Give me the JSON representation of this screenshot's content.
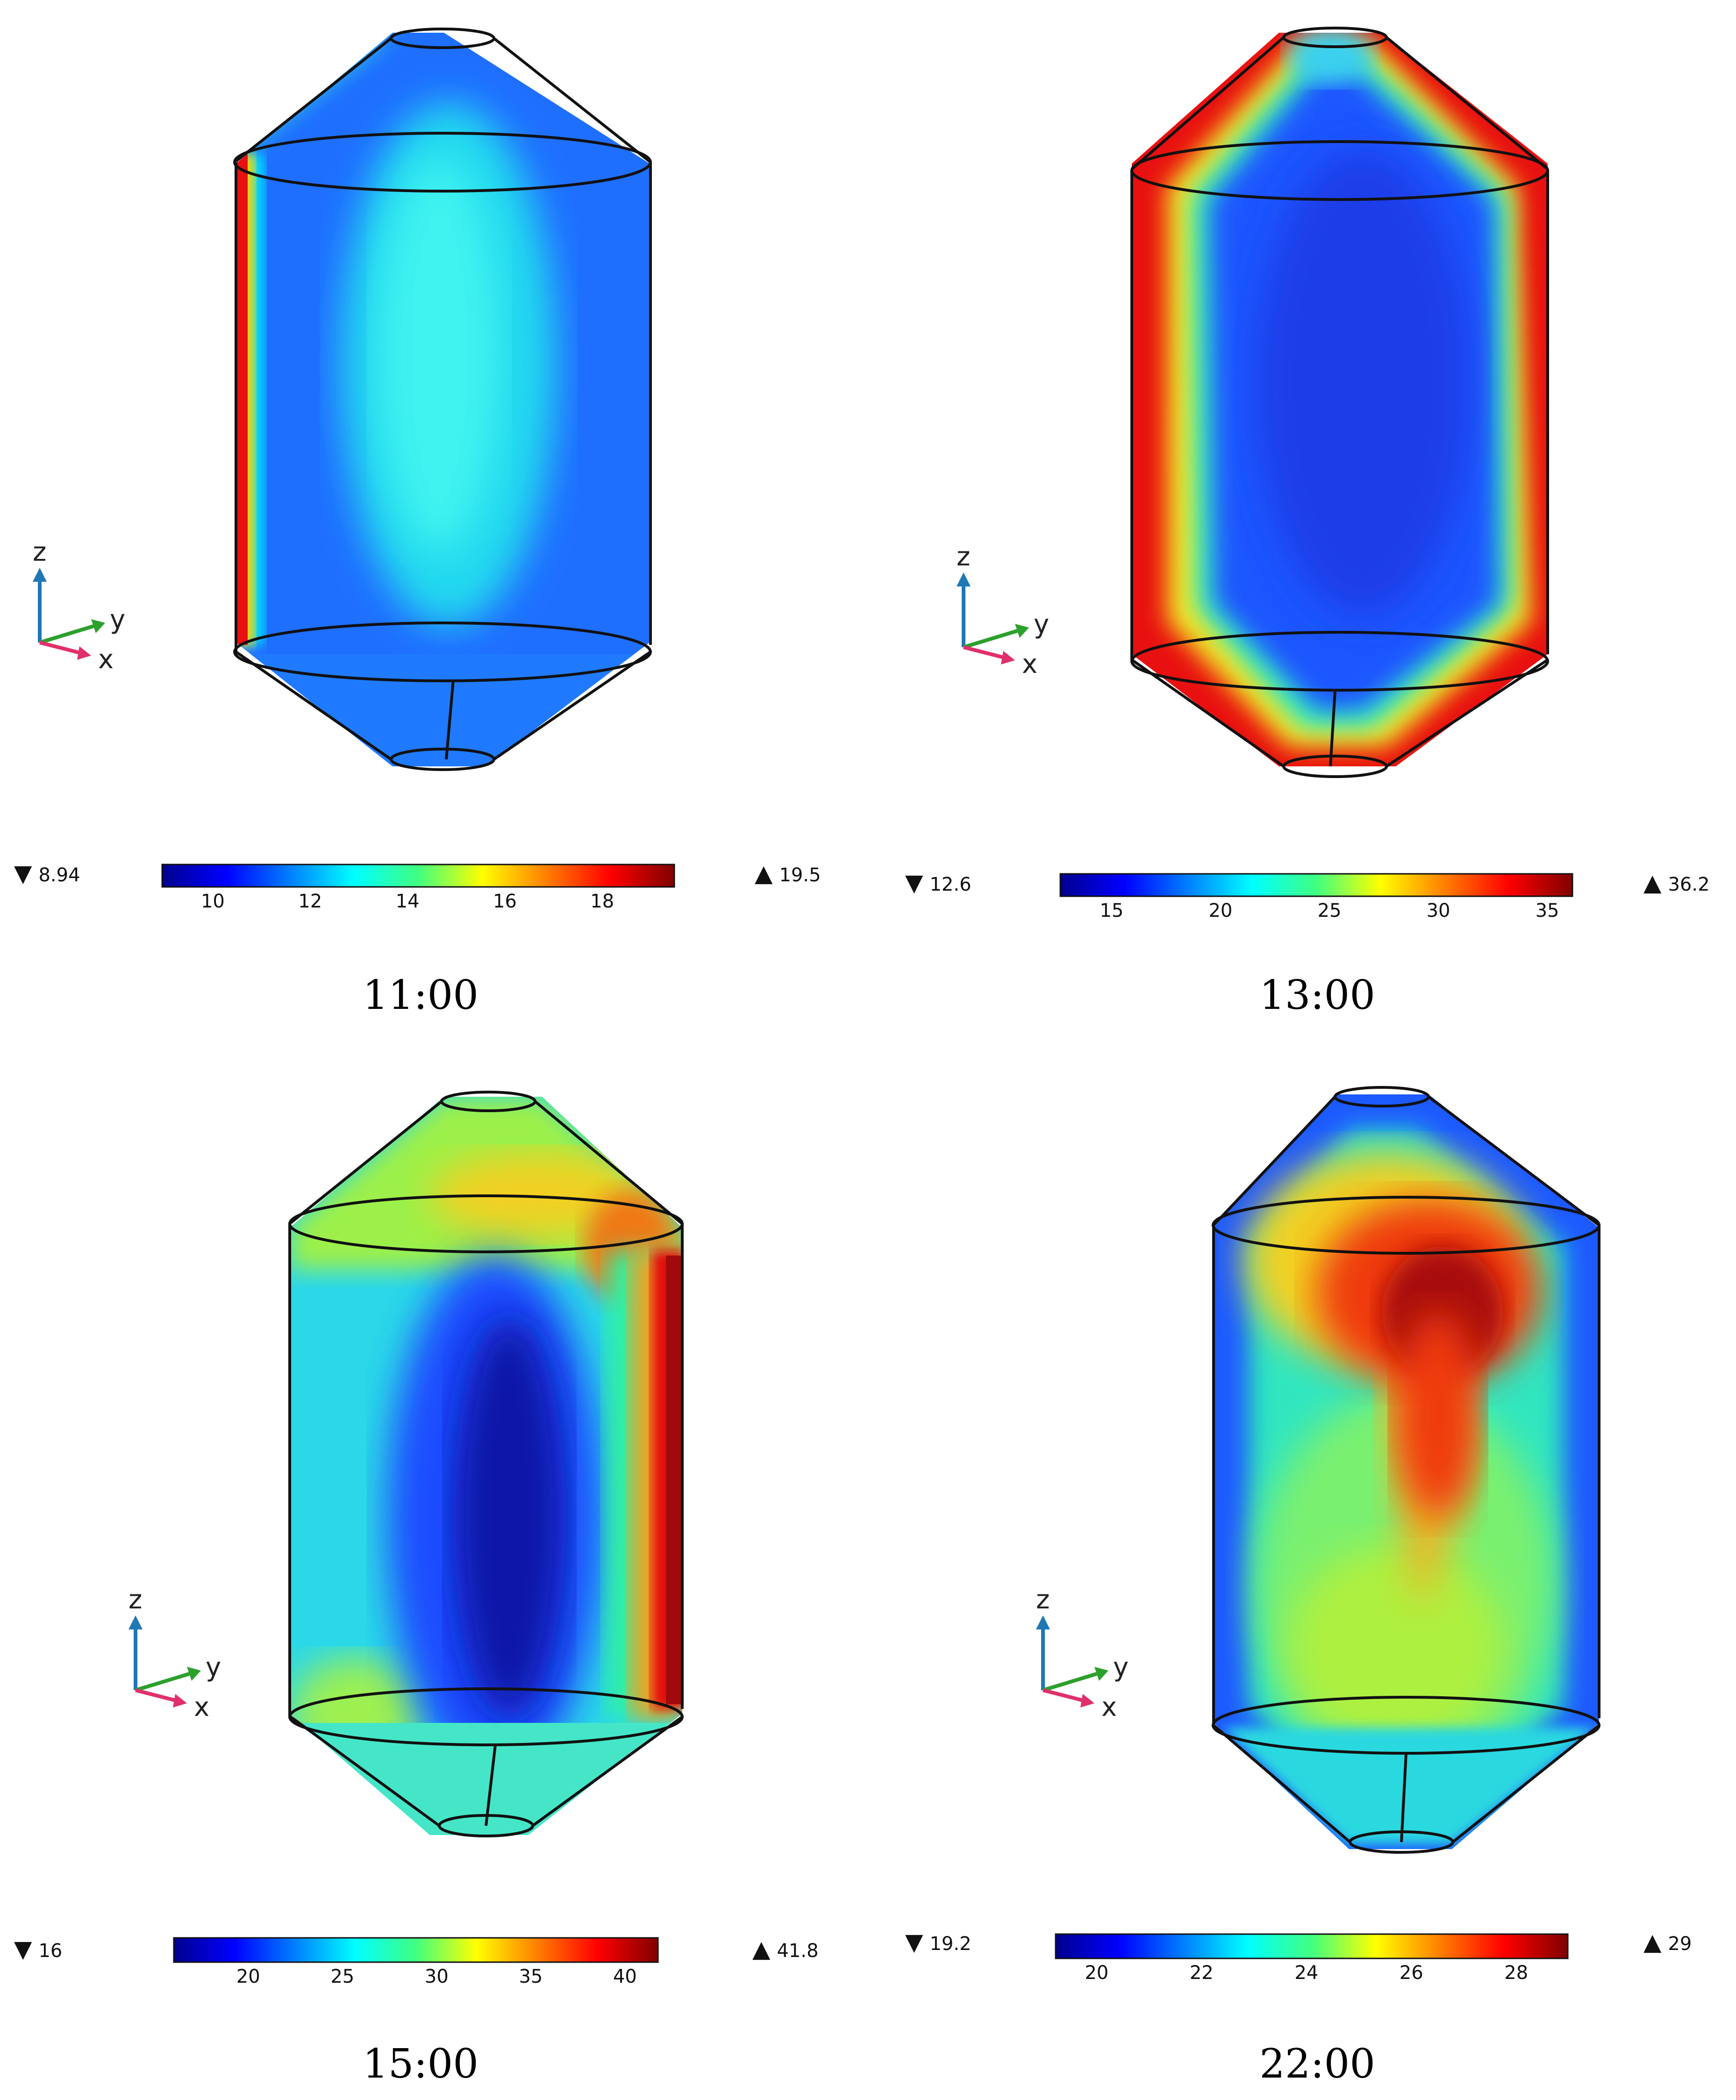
{
  "panels": [
    {
      "id": "p1100",
      "time_label": "11:00",
      "min_label": "8.94",
      "max_label": "19.5",
      "ticks": [
        "10",
        "12",
        "14",
        "16",
        "18"
      ],
      "tick_values": [
        10,
        12,
        14,
        16,
        18
      ],
      "range": [
        8.94,
        19.5
      ]
    },
    {
      "id": "p1300",
      "time_label": "13:00",
      "min_label": "12.6",
      "max_label": "36.2",
      "ticks": [
        "15",
        "20",
        "25",
        "30",
        "35"
      ],
      "tick_values": [
        15,
        20,
        25,
        30,
        35
      ],
      "range": [
        12.6,
        36.2
      ]
    },
    {
      "id": "p1500",
      "time_label": "15:00",
      "min_label": "16",
      "max_label": "41.8",
      "ticks": [
        "20",
        "25",
        "30",
        "35",
        "40"
      ],
      "tick_values": [
        20,
        25,
        30,
        35,
        40
      ],
      "range": [
        16,
        41.8
      ]
    },
    {
      "id": "p2200",
      "time_label": "22:00",
      "min_label": "19.2",
      "max_label": "29",
      "ticks": [
        "20",
        "22",
        "24",
        "26",
        "28"
      ],
      "tick_values": [
        20,
        22,
        24,
        26,
        28
      ],
      "range": [
        19.2,
        29
      ]
    }
  ],
  "axes": {
    "z": "z",
    "y": "y",
    "x": "x"
  },
  "colors": {
    "axis_z": "#1f77b4",
    "axis_y": "#2ca02c",
    "axis_x": "#e0306a",
    "outline": "#111111"
  }
}
